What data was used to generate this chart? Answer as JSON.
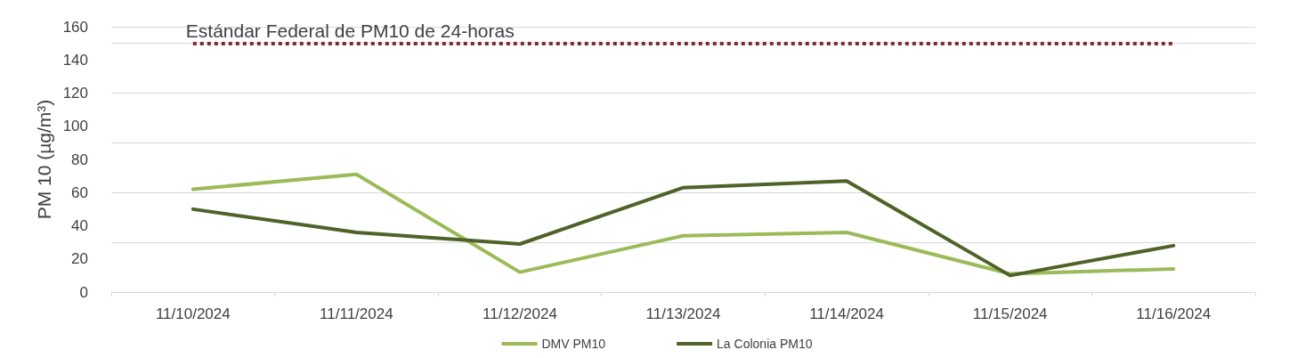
{
  "chart_data": {
    "type": "line",
    "categories": [
      "11/10/2024",
      "11/11/2024",
      "11/12/2024",
      "11/13/2024",
      "11/14/2024",
      "11/15/2024",
      "11/16/2024"
    ],
    "ylabel": "PM 10 (µg/m³)",
    "ylim": [
      0,
      160
    ],
    "yticks": [
      0,
      20,
      40,
      60,
      80,
      100,
      120,
      140,
      160
    ],
    "grid": "y",
    "legend": "bottom",
    "marker": "none",
    "line_style": "solid",
    "series": [
      {
        "name": "DMV PM10",
        "color": "#9bbb59",
        "values": [
          62,
          71,
          12,
          34,
          36,
          11,
          14
        ]
      },
      {
        "name": "La Colonia PM10",
        "color": "#4f6228",
        "values": [
          50,
          36,
          29,
          63,
          67,
          10,
          28
        ]
      }
    ],
    "ref_lines": [
      {
        "axis": "y",
        "value": 150,
        "label": "Estándar Federal de PM10 de 24-horas",
        "color": "#7b2c2c",
        "line_style": "dotted"
      }
    ]
  }
}
